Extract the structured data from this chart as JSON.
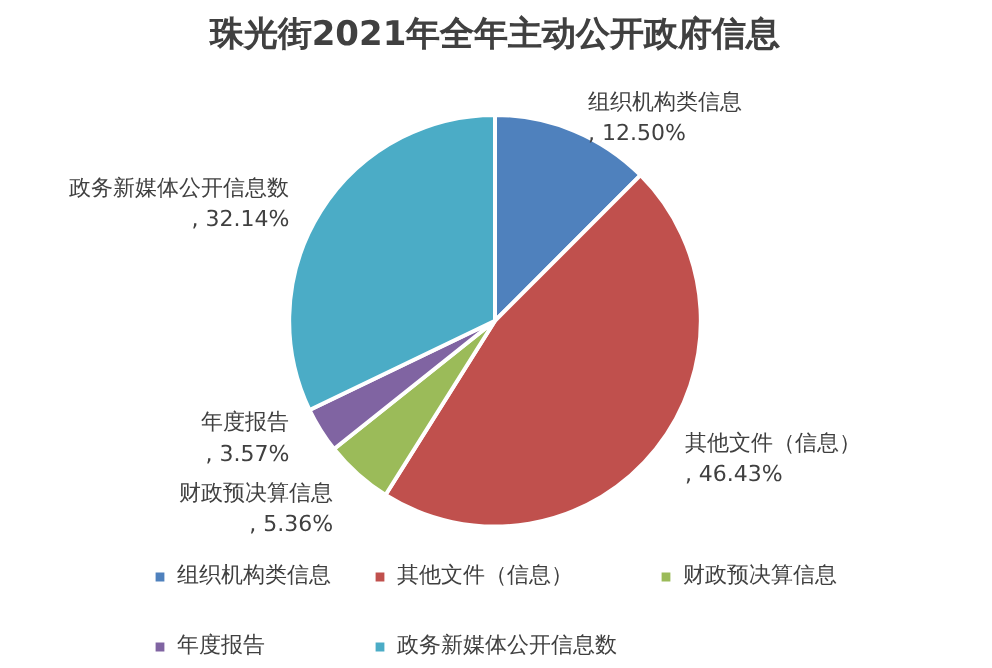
{
  "chart_data": {
    "type": "pie",
    "title": "珠光街2021年全年主动公开政府信息",
    "categories": [
      "组织机构类信息",
      "其他文件（信息）",
      "财政预决算信息",
      "年度报告",
      "政务新媒体公开信息数"
    ],
    "values": [
      12.5,
      46.43,
      5.36,
      3.57,
      32.14
    ],
    "value_labels": [
      ", 12.50%",
      ", 46.43%",
      ", 5.36%",
      ", 3.57%",
      ", 32.14%"
    ],
    "colors": [
      "#4f81bd",
      "#c0504d",
      "#9bbb59",
      "#8064a2",
      "#4bacc6"
    ],
    "legend": "bottom"
  }
}
